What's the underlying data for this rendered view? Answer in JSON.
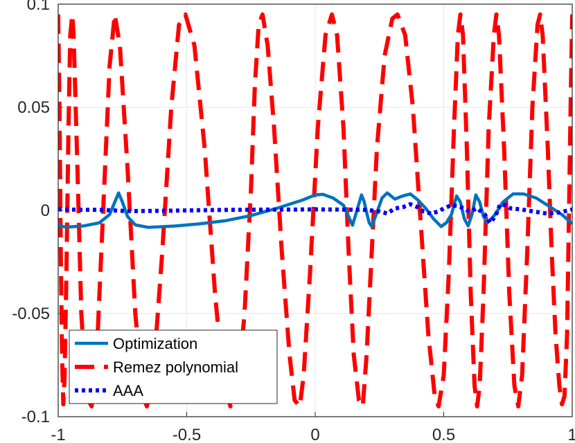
{
  "chart_data": {
    "type": "line",
    "title": "",
    "xlabel": "",
    "ylabel": "",
    "xlim": [
      -1,
      1
    ],
    "ylim": [
      -0.1,
      0.1
    ],
    "grid": true,
    "legend_position": "bottom-left",
    "x_ticks": [
      -1,
      -0.5,
      0,
      0.5,
      1
    ],
    "x_tick_labels": [
      "-1",
      "-0.5",
      "0",
      "0.5",
      "1"
    ],
    "y_ticks": [
      -0.1,
      -0.05,
      0,
      0.05,
      0.1
    ],
    "y_tick_labels": [
      "-0.1",
      "-0.05",
      "0",
      "0.05",
      "0.1"
    ],
    "series": [
      {
        "name": "Optimization",
        "style": "solid",
        "color": "#0072BD",
        "points": [
          [
            -1,
            -0.006
          ],
          [
            -0.99,
            -0.0078
          ],
          [
            -0.96,
            -0.008
          ],
          [
            -0.9,
            -0.0075
          ],
          [
            -0.84,
            -0.006
          ],
          [
            -0.8,
            -0.002
          ],
          [
            -0.78,
            0.004
          ],
          [
            -0.765,
            0.0085
          ],
          [
            -0.75,
            0.004
          ],
          [
            -0.73,
            -0.003
          ],
          [
            -0.7,
            -0.007
          ],
          [
            -0.65,
            -0.0082
          ],
          [
            -0.55,
            -0.0076
          ],
          [
            -0.45,
            -0.0065
          ],
          [
            -0.35,
            -0.005
          ],
          [
            -0.25,
            -0.0025
          ],
          [
            -0.15,
            0.001
          ],
          [
            -0.05,
            0.005
          ],
          [
            0,
            0.0075
          ],
          [
            0.03,
            0.0078
          ],
          [
            0.07,
            0.006
          ],
          [
            0.11,
            0.0025
          ],
          [
            0.13,
            -0.003
          ],
          [
            0.145,
            -0.0072
          ],
          [
            0.16,
            -0.001
          ],
          [
            0.18,
            0.0075
          ],
          [
            0.19,
            0.0045
          ],
          [
            0.2,
            -0.001
          ],
          [
            0.21,
            -0.006
          ],
          [
            0.22,
            -0.0078
          ],
          [
            0.24,
            -0.001
          ],
          [
            0.26,
            0.006
          ],
          [
            0.28,
            0.0085
          ],
          [
            0.31,
            0.0055
          ],
          [
            0.34,
            0.007
          ],
          [
            0.37,
            0.008
          ],
          [
            0.4,
            0.005
          ],
          [
            0.43,
            0.001
          ],
          [
            0.46,
            -0.004
          ],
          [
            0.49,
            -0.0078
          ],
          [
            0.51,
            -0.006
          ],
          [
            0.53,
            -0.002
          ],
          [
            0.55,
            0.007
          ],
          [
            0.565,
            0.004
          ],
          [
            0.58,
            -0.004
          ],
          [
            0.595,
            -0.0075
          ],
          [
            0.61,
            -0.002
          ],
          [
            0.625,
            0.0075
          ],
          [
            0.64,
            0.004
          ],
          [
            0.655,
            -0.003
          ],
          [
            0.67,
            -0.006
          ],
          [
            0.7,
            -0.002
          ],
          [
            0.73,
            0.004
          ],
          [
            0.77,
            0.008
          ],
          [
            0.81,
            0.008
          ],
          [
            0.86,
            0.006
          ],
          [
            0.91,
            0.002
          ],
          [
            0.96,
            -0.002
          ],
          [
            1,
            -0.0065
          ]
        ]
      },
      {
        "name": "Remez polynomial",
        "style": "dashed",
        "color": "#FF0000",
        "points": [
          [
            -1,
            0.095
          ],
          [
            -0.995,
            0.05
          ],
          [
            -0.99,
            -0.02
          ],
          [
            -0.985,
            -0.07
          ],
          [
            -0.98,
            -0.094
          ],
          [
            -0.975,
            -0.08
          ],
          [
            -0.968,
            -0.03
          ],
          [
            -0.96,
            0.04
          ],
          [
            -0.953,
            0.085
          ],
          [
            -0.945,
            0.095
          ],
          [
            -0.94,
            0.085
          ],
          [
            -0.925,
            0.02
          ],
          [
            -0.91,
            -0.05
          ],
          [
            -0.89,
            -0.09
          ],
          [
            -0.87,
            -0.095
          ],
          [
            -0.85,
            -0.07
          ],
          [
            -0.825,
            0
          ],
          [
            -0.8,
            0.07
          ],
          [
            -0.78,
            0.095
          ],
          [
            -0.76,
            0.08
          ],
          [
            -0.73,
            0.02
          ],
          [
            -0.7,
            -0.05
          ],
          [
            -0.67,
            -0.09
          ],
          [
            -0.655,
            -0.095
          ],
          [
            -0.63,
            -0.08
          ],
          [
            -0.595,
            -0.02
          ],
          [
            -0.56,
            0.05
          ],
          [
            -0.53,
            0.09
          ],
          [
            -0.505,
            0.095
          ],
          [
            -0.47,
            0.08
          ],
          [
            -0.43,
            0.03
          ],
          [
            -0.39,
            -0.04
          ],
          [
            -0.36,
            -0.08
          ],
          [
            -0.33,
            -0.095
          ],
          [
            -0.3,
            -0.085
          ],
          [
            -0.275,
            -0.05
          ],
          [
            -0.25,
            0.01
          ],
          [
            -0.235,
            0.06
          ],
          [
            -0.22,
            0.09
          ],
          [
            -0.205,
            0.095
          ],
          [
            -0.185,
            0.08
          ],
          [
            -0.16,
            0.04
          ],
          [
            -0.13,
            -0.02
          ],
          [
            -0.1,
            -0.07
          ],
          [
            -0.08,
            -0.092
          ],
          [
            -0.06,
            -0.095
          ],
          [
            -0.045,
            -0.08
          ],
          [
            -0.02,
            -0.03
          ],
          [
            0.01,
            0.04
          ],
          [
            0.04,
            0.085
          ],
          [
            0.065,
            0.095
          ],
          [
            0.085,
            0.085
          ],
          [
            0.11,
            0.04
          ],
          [
            0.13,
            -0.02
          ],
          [
            0.15,
            -0.07
          ],
          [
            0.17,
            -0.092
          ],
          [
            0.185,
            -0.095
          ],
          [
            0.2,
            -0.07
          ],
          [
            0.22,
            -0.02
          ],
          [
            0.24,
            0.03
          ],
          [
            0.27,
            0.075
          ],
          [
            0.3,
            0.093
          ],
          [
            0.32,
            0.095
          ],
          [
            0.35,
            0.085
          ],
          [
            0.38,
            0.05
          ],
          [
            0.41,
            -0.005
          ],
          [
            0.44,
            -0.06
          ],
          [
            0.465,
            -0.09
          ],
          [
            0.48,
            -0.095
          ],
          [
            0.5,
            -0.08
          ],
          [
            0.52,
            -0.03
          ],
          [
            0.54,
            0.04
          ],
          [
            0.555,
            0.085
          ],
          [
            0.565,
            0.095
          ],
          [
            0.575,
            0.085
          ],
          [
            0.59,
            0.03
          ],
          [
            0.605,
            -0.04
          ],
          [
            0.62,
            -0.085
          ],
          [
            0.63,
            -0.095
          ],
          [
            0.64,
            -0.085
          ],
          [
            0.655,
            -0.04
          ],
          [
            0.675,
            0.04
          ],
          [
            0.695,
            0.085
          ],
          [
            0.705,
            0.095
          ],
          [
            0.715,
            0.085
          ],
          [
            0.735,
            0.03
          ],
          [
            0.755,
            -0.04
          ],
          [
            0.775,
            -0.085
          ],
          [
            0.79,
            -0.095
          ],
          [
            0.805,
            -0.08
          ],
          [
            0.825,
            -0.02
          ],
          [
            0.845,
            0.05
          ],
          [
            0.865,
            0.09
          ],
          [
            0.875,
            0.095
          ],
          [
            0.885,
            0.085
          ],
          [
            0.905,
            0.03
          ],
          [
            0.92,
            -0.02
          ],
          [
            0.935,
            -0.06
          ],
          [
            0.95,
            -0.085
          ],
          [
            0.96,
            -0.094
          ],
          [
            0.97,
            -0.09
          ],
          [
            0.98,
            -0.06
          ],
          [
            0.99,
            0.02
          ],
          [
            0.995,
            0.06
          ],
          [
            1,
            0.095
          ]
        ]
      },
      {
        "name": "AAA",
        "style": "dotted",
        "color": "#0000FF",
        "points": [
          [
            -1,
            0.0005
          ],
          [
            -0.95,
            0.0004
          ],
          [
            -0.9,
            0.0003
          ],
          [
            -0.85,
            0.0003
          ],
          [
            -0.8,
            0.0001
          ],
          [
            -0.75,
            -0.0002
          ],
          [
            -0.7,
            -0.0003
          ],
          [
            -0.6,
            -0.0002
          ],
          [
            -0.5,
            0
          ],
          [
            -0.4,
            0.0002
          ],
          [
            -0.3,
            0.0003
          ],
          [
            -0.2,
            0.0004
          ],
          [
            -0.1,
            0.0004
          ],
          [
            0,
            0.0005
          ],
          [
            0.1,
            0.0004
          ],
          [
            0.2,
            0.0003
          ],
          [
            0.25,
            -0.0005
          ],
          [
            0.28,
            -0.0015
          ],
          [
            0.31,
            0.001
          ],
          [
            0.34,
            0.0015
          ],
          [
            0.37,
            0.003
          ],
          [
            0.4,
            0.0015
          ],
          [
            0.42,
            -0.0005
          ],
          [
            0.45,
            -0.0015
          ],
          [
            0.48,
            -0.0005
          ],
          [
            0.5,
            0.001
          ],
          [
            0.53,
            0.0025
          ],
          [
            0.56,
            0.002
          ],
          [
            0.6,
            -0.0005
          ],
          [
            0.63,
            0.001
          ],
          [
            0.66,
            -0.002
          ],
          [
            0.68,
            -0.006
          ],
          [
            0.7,
            -0.003
          ],
          [
            0.72,
            0.003
          ],
          [
            0.74,
            0.0025
          ],
          [
            0.76,
            0.001
          ],
          [
            0.8,
            0.0005
          ],
          [
            0.85,
            -0.0005
          ],
          [
            0.9,
            -0.0015
          ],
          [
            0.95,
            -0.001
          ],
          [
            1,
            0.0005
          ]
        ]
      }
    ]
  }
}
